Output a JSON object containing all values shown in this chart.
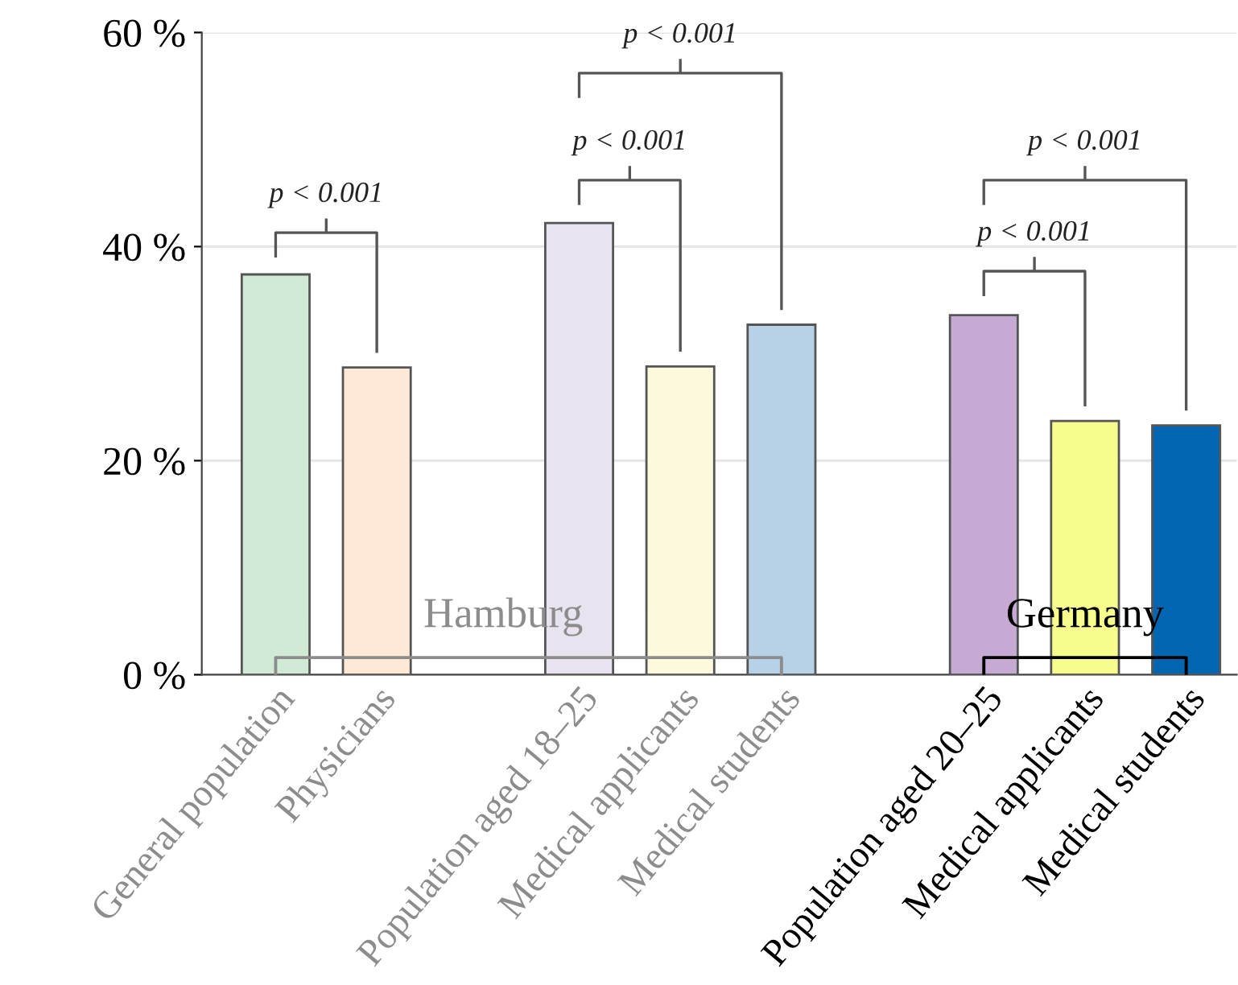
{
  "chart_data": {
    "type": "bar",
    "categories": [
      "General population",
      "Physicians",
      null,
      "Population aged 18–25",
      "Medical applicants",
      "Medical students",
      null,
      "Population aged 20–25",
      "Medical applicants",
      "Medical students"
    ],
    "values": [
      37.4,
      28.7,
      null,
      42.2,
      28.8,
      32.7,
      null,
      33.6,
      23.7,
      23.3
    ],
    "colors": [
      "#d0ead5",
      "#fde9d6",
      null,
      "#e9e2ef",
      "#fdf9dc",
      "#b7d2e6",
      null,
      "#c6aad3",
      "#f7fd8d",
      "#0066b1"
    ],
    "ylim": [
      0,
      60
    ],
    "yticks": [
      {
        "value": 0,
        "label": "0 %"
      },
      {
        "value": 20,
        "label": "20 %"
      },
      {
        "value": 40,
        "label": "40 %"
      },
      {
        "value": 60,
        "label": "60 %"
      }
    ],
    "grid": "y",
    "annotations": [
      "p < 0.001",
      "p < 0.001",
      "p < 0.001",
      "p < 0.001",
      "p < 0.001",
      "Hamburg",
      "Germany"
    ]
  }
}
